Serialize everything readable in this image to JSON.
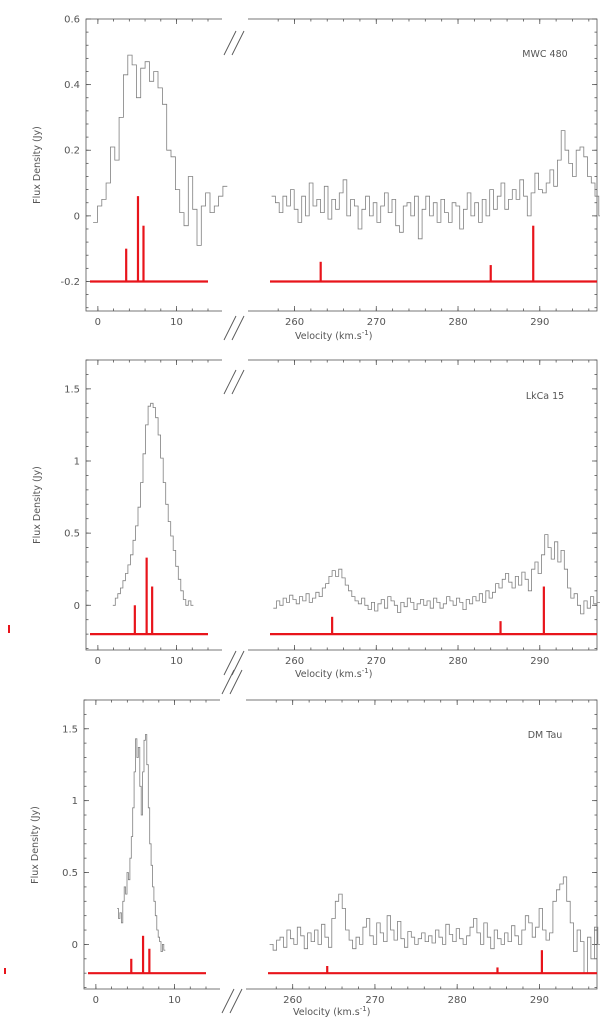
{
  "chart_data": [
    {
      "type": "line",
      "title": "MWC 480",
      "xlabel_main": "Velocity (km.s",
      "xlabel_sup": "-1",
      "xlabel_close": ")",
      "ylabel": "Flux Density (Jy)",
      "ylim": [
        -0.29,
        0.6
      ],
      "yticks": [
        -0.2,
        0,
        0.2,
        0.4,
        0.6
      ],
      "ytick_labels": [
        "-0.2",
        "0",
        "0.2",
        "0.4",
        "0.6"
      ],
      "segments": [
        {
          "xlim": [
            -1,
            14
          ],
          "xticks": [
            0,
            10
          ],
          "xtick_labels": [
            "0",
            "10"
          ]
        },
        {
          "xlim": [
            257,
            297
          ],
          "xticks": [
            260,
            270,
            280,
            290
          ],
          "xtick_labels": [
            "260",
            "270",
            "280",
            "290"
          ]
        }
      ],
      "spectrum": [
        {
          "start": -0.6,
          "step": 0.55,
          "values": [
            -0.02,
            0.03,
            0.05,
            0.1,
            0.21,
            0.17,
            0.3,
            0.43,
            0.49,
            0.46,
            0.36,
            0.45,
            0.47,
            0.41,
            0.44,
            0.39,
            0.34,
            0.2,
            0.18,
            0.08,
            0.01,
            -0.03,
            0.12,
            0.02,
            -0.09,
            0.03,
            0.07,
            0.01,
            0.03,
            0.06,
            0.09
          ]
        },
        {
          "start": 257.2,
          "step": 0.46,
          "values": [
            0.06,
            0.04,
            0.01,
            0.06,
            0.03,
            0.08,
            0.02,
            -0.02,
            0.06,
            0.0,
            0.1,
            0.03,
            0.05,
            0.01,
            0.09,
            -0.01,
            0.05,
            0.02,
            0.07,
            0.11,
            0.0,
            0.05,
            0.03,
            -0.04,
            0.02,
            0.06,
            0.0,
            0.04,
            -0.02,
            0.03,
            0.07,
            0.01,
            0.05,
            -0.03,
            -0.05,
            0.03,
            0.04,
            0.0,
            0.06,
            -0.07,
            0.02,
            0.06,
            0.0,
            0.04,
            -0.02,
            0.05,
            0.01,
            -0.02,
            0.04,
            0.03,
            -0.04,
            0.02,
            0.07,
            0.0,
            0.04,
            -0.02,
            0.05,
            0.0,
            0.08,
            0.02,
            0.06,
            0.1,
            0.02,
            0.05,
            0.08,
            0.05,
            0.11,
            0.06,
            0.0,
            0.07,
            0.13,
            0.08,
            0.07,
            0.1,
            0.14,
            0.09,
            0.17,
            0.26,
            0.2,
            0.16,
            0.12,
            0.2,
            0.21,
            0.18,
            0.12,
            0.1,
            0.06,
            0.0,
            0.04,
            0.07,
            0.03,
            0.06,
            -0.04,
            0.05,
            0.02,
            0.0,
            0.03
          ]
        }
      ],
      "markers": {
        "baseline": -0.2,
        "lines": [
          {
            "x": 3.6,
            "top": -0.1
          },
          {
            "x": 5.1,
            "top": 0.06
          },
          {
            "x": 5.8,
            "top": -0.03
          },
          {
            "x": 263.2,
            "top": -0.14
          },
          {
            "x": 284.0,
            "top": -0.15
          },
          {
            "x": 289.2,
            "top": -0.03
          }
        ]
      }
    },
    {
      "type": "line",
      "title": "LkCa 15",
      "xlabel_main": "Velocity (km.s",
      "xlabel_sup": "-1",
      "xlabel_close": ")",
      "ylabel": "Flux Density (Jy)",
      "ylim": [
        -0.31,
        1.7
      ],
      "yticks": [
        0,
        0.5,
        1,
        1.5
      ],
      "ytick_labels": [
        "0",
        "0.5",
        "1",
        "1.5"
      ],
      "segments": [
        {
          "xlim": [
            -1,
            14
          ],
          "xticks": [
            0,
            10
          ],
          "xtick_labels": [
            "0",
            "10"
          ]
        },
        {
          "xlim": [
            257,
            297
          ],
          "xticks": [
            260,
            270,
            280,
            290
          ],
          "xtick_labels": [
            "260",
            "270",
            "280",
            "290"
          ]
        }
      ],
      "spectrum": [
        {
          "start": 1.9,
          "step": 0.32,
          "values": [
            0.0,
            0.05,
            0.08,
            0.12,
            0.17,
            0.22,
            0.28,
            0.35,
            0.45,
            0.55,
            0.68,
            0.85,
            1.05,
            1.25,
            1.38,
            1.4,
            1.37,
            1.3,
            1.18,
            1.02,
            0.85,
            0.7,
            0.58,
            0.48,
            0.38,
            0.27,
            0.18,
            0.1,
            0.04,
            0.0,
            0.03,
            0.0
          ]
        },
        {
          "start": 257.4,
          "step": 0.4,
          "values": [
            -0.02,
            0.03,
            0.0,
            0.05,
            0.02,
            0.07,
            0.04,
            0.01,
            0.06,
            0.03,
            0.08,
            0.02,
            0.05,
            0.09,
            0.06,
            0.12,
            0.15,
            0.2,
            0.24,
            0.2,
            0.25,
            0.19,
            0.14,
            0.1,
            0.06,
            0.03,
            0.01,
            0.05,
            0.0,
            -0.03,
            0.02,
            -0.04,
            0.01,
            0.04,
            -0.02,
            0.06,
            0.03,
            0.0,
            -0.05,
            0.02,
            -0.01,
            0.05,
            0.02,
            -0.03,
            0.01,
            0.04,
            0.0,
            0.03,
            -0.02,
            0.05,
            0.02,
            -0.02,
            0.01,
            0.06,
            0.03,
            0.0,
            0.05,
            0.02,
            -0.03,
            0.04,
            0.01,
            0.06,
            0.03,
            0.08,
            0.02,
            0.1,
            0.05,
            0.09,
            0.15,
            0.12,
            0.18,
            0.22,
            0.16,
            0.12,
            0.2,
            0.14,
            0.23,
            0.18,
            0.1,
            0.25,
            0.3,
            0.22,
            0.35,
            0.49,
            0.4,
            0.32,
            0.44,
            0.3,
            0.38,
            0.25,
            0.12,
            0.05,
            0.08,
            0.0,
            -0.06,
            0.03,
            -0.02,
            0.06,
            0.01,
            0.02
          ]
        }
      ],
      "markers": {
        "baseline": -0.2,
        "lines": [
          {
            "x": 4.7,
            "top": 0.0
          },
          {
            "x": 6.2,
            "top": 0.33
          },
          {
            "x": 6.9,
            "top": 0.13
          },
          {
            "x": 264.6,
            "top": -0.08
          },
          {
            "x": 285.2,
            "top": -0.11
          },
          {
            "x": 290.5,
            "top": 0.13
          }
        ]
      }
    },
    {
      "type": "line",
      "title": "DM Tau",
      "xlabel_main": "Velocity (km.s",
      "xlabel_sup": "-1",
      "xlabel_close": ")",
      "ylabel": "Flux Density (Jy)",
      "ylim": [
        -0.31,
        1.7
      ],
      "yticks": [
        0,
        0.5,
        1,
        1.5
      ],
      "ytick_labels": [
        "0",
        "0.5",
        "1",
        "1.5"
      ],
      "segments": [
        {
          "xlim": [
            -1,
            14
          ],
          "xticks": [
            0,
            10
          ],
          "xtick_labels": [
            "0",
            "10"
          ]
        },
        {
          "xlim": [
            257,
            297
          ],
          "xticks": [
            260,
            270,
            280,
            290
          ],
          "xtick_labels": [
            "260",
            "270",
            "280",
            "290"
          ]
        }
      ],
      "spectrum": [
        {
          "start": 2.7,
          "step": 0.18,
          "values": [
            0.25,
            0.18,
            0.22,
            0.15,
            0.3,
            0.4,
            0.35,
            0.5,
            0.45,
            0.6,
            0.75,
            0.95,
            1.2,
            1.43,
            1.3,
            1.37,
            1.1,
            0.9,
            1.2,
            1.42,
            1.46,
            1.25,
            0.95,
            0.7,
            0.55,
            0.4,
            0.3,
            0.2,
            0.1,
            0.05,
            0.02,
            -0.05,
            0.0,
            -0.04
          ]
        },
        {
          "start": 257.2,
          "step": 0.42,
          "values": [
            0.0,
            -0.04,
            0.03,
            0.05,
            -0.02,
            0.1,
            0.04,
            0.0,
            0.12,
            0.06,
            -0.03,
            0.08,
            0.02,
            0.1,
            0.0,
            0.14,
            0.05,
            -0.02,
            0.18,
            0.3,
            0.35,
            0.25,
            0.1,
            0.03,
            -0.03,
            0.05,
            0.0,
            0.12,
            0.18,
            0.06,
            0.0,
            0.15,
            0.08,
            0.02,
            0.2,
            0.1,
            0.03,
            0.16,
            0.04,
            -0.02,
            0.09,
            0.05,
            0.0,
            0.04,
            0.08,
            0.02,
            0.06,
            0.01,
            0.1,
            0.05,
            0.0,
            0.14,
            0.07,
            0.02,
            0.11,
            0.04,
            0.0,
            0.06,
            0.12,
            0.18,
            0.08,
            0.0,
            0.15,
            0.05,
            -0.03,
            0.1,
            0.04,
            0.0,
            0.08,
            0.02,
            0.13,
            0.06,
            0.0,
            0.1,
            0.2,
            0.15,
            0.05,
            0.12,
            0.25,
            0.1,
            0.03,
            0.08,
            0.3,
            0.38,
            0.42,
            0.47,
            0.3,
            0.15,
            -0.05,
            0.1,
            0.02,
            -0.2,
            0.05,
            -0.1,
            0.12,
            0.0,
            -0.15,
            0.15,
            0.2,
            0.1
          ]
        }
      ],
      "markers": {
        "baseline": -0.2,
        "lines": [
          {
            "x": 4.5,
            "top": -0.1
          },
          {
            "x": 6.0,
            "top": 0.06
          },
          {
            "x": 6.8,
            "top": -0.03
          },
          {
            "x": 264.2,
            "top": -0.15
          },
          {
            "x": 284.9,
            "top": -0.16
          },
          {
            "x": 290.3,
            "top": -0.04
          }
        ]
      }
    }
  ]
}
